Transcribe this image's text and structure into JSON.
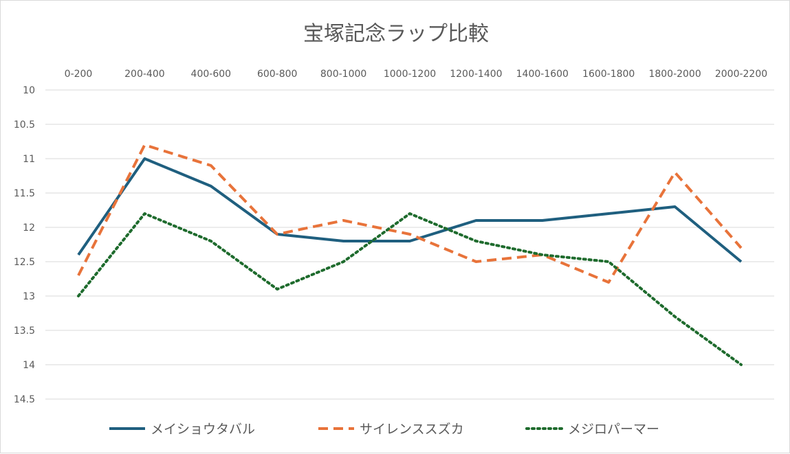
{
  "chart_data": {
    "type": "line",
    "title": "宝塚記念ラップ比較",
    "xlabel": "",
    "ylabel": "",
    "y_reversed": true,
    "ylim": [
      10,
      14.5
    ],
    "y_ticks": [
      "10",
      "10.5",
      "11",
      "11.5",
      "12",
      "12.5",
      "13",
      "13.5",
      "14",
      "14.5"
    ],
    "categories": [
      "0-200",
      "200-400",
      "400-600",
      "600-800",
      "800-1000",
      "1000-1200",
      "1200-1400",
      "1400-1600",
      "1600-1800",
      "1800-2000",
      "2000-2200"
    ],
    "series": [
      {
        "name": "メイショウタバル",
        "color": "#1f5f7f",
        "style": "solid",
        "values": [
          12.4,
          11.0,
          11.4,
          12.1,
          12.2,
          12.2,
          11.9,
          11.9,
          11.8,
          11.7,
          12.5
        ]
      },
      {
        "name": "サイレンススズカ",
        "color": "#e8733a",
        "style": "dashed",
        "values": [
          12.7,
          10.8,
          11.1,
          12.1,
          11.9,
          12.1,
          12.5,
          12.4,
          12.8,
          11.2,
          12.3
        ]
      },
      {
        "name": "メジロパーマー",
        "color": "#1e6b2d",
        "style": "dotted",
        "values": [
          13.0,
          11.8,
          12.2,
          12.9,
          12.5,
          11.8,
          12.2,
          12.4,
          12.5,
          13.3,
          14.0
        ]
      }
    ],
    "legend": "bottom",
    "grid": true
  }
}
